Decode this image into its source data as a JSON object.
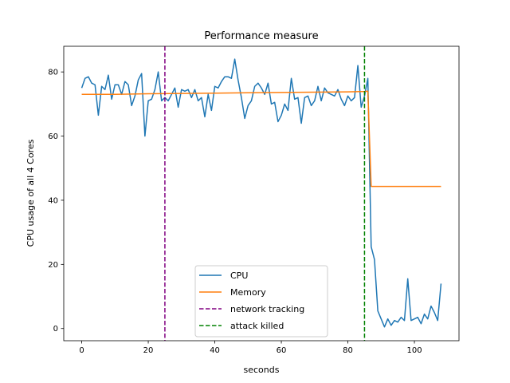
{
  "chart_data": {
    "type": "line",
    "title": "Performance measure",
    "xlabel": "seconds",
    "ylabel": "CPU usage of all 4 Cores",
    "xlim": [
      -5.4,
      113.4
    ],
    "ylim": [
      -3.8,
      88.0
    ],
    "xticks": [
      0,
      20,
      40,
      60,
      80,
      100
    ],
    "yticks": [
      0,
      20,
      40,
      60,
      80
    ],
    "grid": false,
    "legend_position": "lower-center",
    "series": [
      {
        "name": "CPU",
        "color": "#1f77b4",
        "style": "solid",
        "x": [
          0,
          1,
          2,
          3,
          4,
          5,
          6,
          7,
          8,
          9,
          10,
          11,
          12,
          13,
          14,
          15,
          16,
          17,
          18,
          19,
          20,
          21,
          22,
          23,
          24,
          25,
          26,
          27,
          28,
          29,
          30,
          31,
          32,
          33,
          34,
          35,
          36,
          37,
          38,
          39,
          40,
          41,
          42,
          43,
          44,
          45,
          46,
          47,
          48,
          49,
          50,
          51,
          52,
          53,
          54,
          55,
          56,
          57,
          58,
          59,
          60,
          61,
          62,
          63,
          64,
          65,
          66,
          67,
          68,
          69,
          70,
          71,
          72,
          73,
          74,
          75,
          76,
          77,
          78,
          79,
          80,
          81,
          82,
          83,
          84,
          85,
          86,
          87,
          88,
          89,
          90,
          91,
          92,
          93,
          94,
          95,
          96,
          97,
          98,
          99,
          100,
          101,
          102,
          103,
          104,
          105,
          106,
          107,
          108
        ],
        "y": [
          75.0,
          78.0,
          78.5,
          76.5,
          76.0,
          66.5,
          75.5,
          74.5,
          79.0,
          71.5,
          76.0,
          76.0,
          73.0,
          77.0,
          76.0,
          69.5,
          72.5,
          77.5,
          79.5,
          60.0,
          71.0,
          71.5,
          74.5,
          80.0,
          71.0,
          72.0,
          71.0,
          73.0,
          75.0,
          69.0,
          74.5,
          74.0,
          74.5,
          72.0,
          74.5,
          71.0,
          72.0,
          66.0,
          73.0,
          68.0,
          75.5,
          75.0,
          77.0,
          78.5,
          78.5,
          78.0,
          84.0,
          77.5,
          72.0,
          65.5,
          69.5,
          71.0,
          75.5,
          76.5,
          75.0,
          73.0,
          76.5,
          70.0,
          70.5,
          64.5,
          66.5,
          70.0,
          68.0,
          78.0,
          71.5,
          72.0,
          64.0,
          72.0,
          72.5,
          69.5,
          71.0,
          75.5,
          71.0,
          75.0,
          73.5,
          73.0,
          72.5,
          74.5,
          71.5,
          69.5,
          72.5,
          71.0,
          72.0,
          82.0,
          69.0,
          72.5,
          78.0,
          25.5,
          21.5,
          5.5,
          3.0,
          0.5,
          3.0,
          1.0,
          2.5,
          2.0,
          3.5,
          2.5,
          15.5,
          2.5,
          3.0,
          3.5,
          1.5,
          4.5,
          3.0,
          7.0,
          5.0,
          2.5,
          14.0
        ]
      },
      {
        "name": "Memory",
        "color": "#ff7f0e",
        "style": "solid",
        "x": [
          0,
          10,
          20,
          30,
          40,
          50,
          60,
          70,
          80,
          85,
          86,
          87,
          88,
          90,
          100,
          108
        ],
        "y": [
          73.0,
          73.0,
          73.2,
          73.3,
          73.4,
          73.5,
          73.6,
          73.7,
          73.8,
          73.9,
          74.0,
          44.3,
          44.3,
          44.3,
          44.3,
          44.3
        ]
      }
    ],
    "vlines": [
      {
        "name": "network tracking",
        "x": 25,
        "color": "#800080",
        "style": "dashed"
      },
      {
        "name": "attack killed",
        "x": 85,
        "color": "#008000",
        "style": "dashed"
      }
    ]
  }
}
